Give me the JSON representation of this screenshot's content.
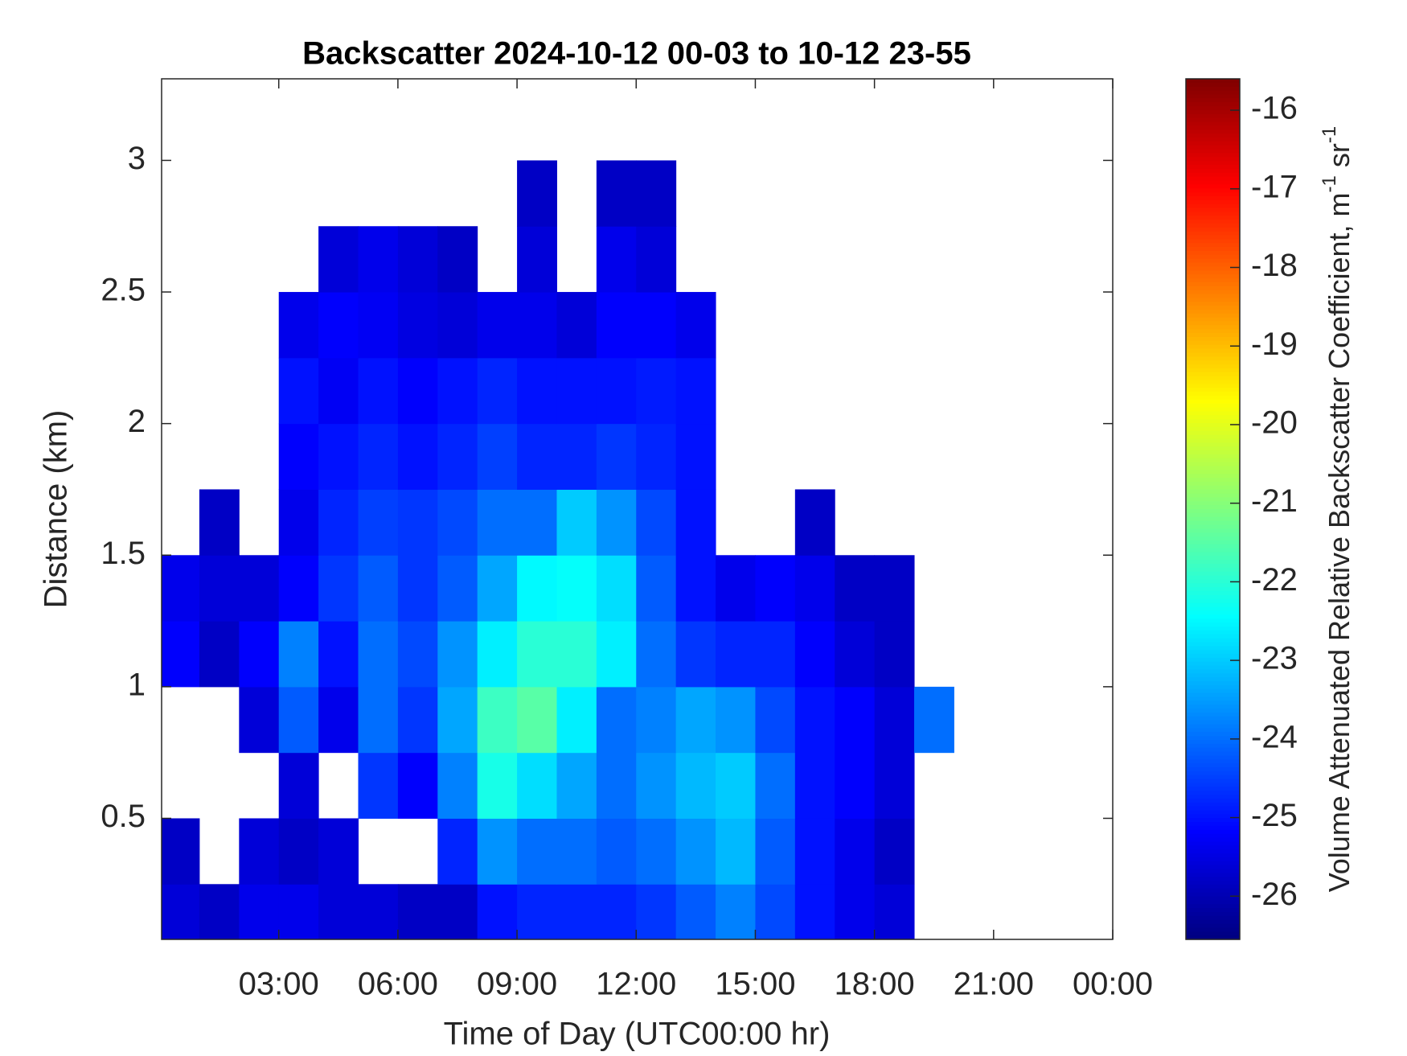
{
  "chart_data": {
    "type": "heatmap",
    "title": "Backscatter 2024-10-12 00-03 to 10-12 23-55",
    "x_label": "Time of Day (UTC00:00 hr)",
    "y_label": "Distance (km)",
    "colormap": "jet",
    "x": [
      0,
      1,
      2,
      3,
      4,
      5,
      6,
      7,
      8,
      9,
      10,
      11,
      12,
      13,
      14,
      15,
      16,
      17,
      18,
      19,
      20,
      21,
      22,
      23,
      24
    ],
    "y": [
      0,
      0.25,
      0.5,
      0.75,
      1,
      1.25,
      1.5,
      1.75,
      2,
      2.25,
      2.5,
      2.75,
      3,
      3.25
    ],
    "values": [
      [
        -25.6,
        -25.8,
        -25.4,
        -25.4,
        -25.6,
        -25.6,
        -25.8,
        -25.8,
        -25.0,
        -24.8,
        -24.8,
        -24.8,
        -24.6,
        -24.2,
        -23.8,
        -24.4,
        -25.0,
        -25.4,
        -25.6,
        null,
        null,
        null,
        null,
        null
      ],
      [
        -25.8,
        null,
        -25.6,
        -25.8,
        -25.6,
        null,
        null,
        -24.8,
        -23.6,
        -24.0,
        -24.0,
        -24.2,
        -24.0,
        -23.6,
        -23.2,
        -24.2,
        -25.0,
        -25.4,
        -25.8,
        null,
        null,
        null,
        null,
        null
      ],
      [
        null,
        null,
        null,
        -25.6,
        null,
        -24.6,
        -25.2,
        -23.8,
        -22.2,
        -22.8,
        -23.4,
        -24.0,
        -23.6,
        -23.2,
        -23.0,
        -24.0,
        -25.0,
        -25.2,
        -25.6,
        null,
        null,
        null,
        null,
        null
      ],
      [
        null,
        null,
        -25.6,
        -24.2,
        -25.4,
        -24.0,
        -24.6,
        -23.4,
        -21.8,
        -21.5,
        -22.6,
        -24.0,
        -23.8,
        -23.4,
        -23.6,
        -24.4,
        -25.0,
        -25.2,
        -25.6,
        -24.0,
        null,
        null,
        null,
        null
      ],
      [
        -25.2,
        -25.8,
        -25.2,
        -23.8,
        -25.0,
        -24.0,
        -24.4,
        -23.6,
        -22.6,
        -22.0,
        -22.0,
        -22.6,
        -24.0,
        -24.6,
        -24.8,
        -24.8,
        -25.2,
        -25.6,
        -25.8,
        null,
        null,
        null,
        null,
        null
      ],
      [
        -25.4,
        -25.6,
        -25.6,
        -25.2,
        -24.6,
        -24.2,
        -24.6,
        -24.2,
        -23.4,
        -22.5,
        -22.4,
        -22.8,
        -24.2,
        -25.0,
        -25.4,
        -25.2,
        -25.4,
        -25.8,
        -25.8,
        null,
        null,
        null,
        null,
        null
      ],
      [
        null,
        -25.8,
        null,
        -25.4,
        -24.8,
        -24.5,
        -24.6,
        -24.4,
        -24.0,
        -24.0,
        -23.0,
        -23.6,
        -24.4,
        -25.0,
        null,
        null,
        -25.8,
        null,
        null,
        null,
        null,
        null,
        null,
        null
      ],
      [
        null,
        null,
        null,
        -25.2,
        -25.0,
        -24.8,
        -25.0,
        -24.8,
        -24.5,
        -24.8,
        -24.8,
        -24.6,
        -24.8,
        -25.0,
        null,
        null,
        null,
        null,
        null,
        null,
        null,
        null,
        null,
        null
      ],
      [
        null,
        null,
        null,
        -25.0,
        -25.3,
        -25.0,
        -25.2,
        -25.0,
        -24.8,
        -25.0,
        -25.0,
        -25.0,
        -24.9,
        -25.0,
        null,
        null,
        null,
        null,
        null,
        null,
        null,
        null,
        null,
        null
      ],
      [
        null,
        null,
        null,
        -25.4,
        -25.2,
        -25.3,
        -25.5,
        -25.6,
        -25.4,
        -25.4,
        -25.6,
        -25.2,
        -25.2,
        -25.4,
        null,
        null,
        null,
        null,
        null,
        null,
        null,
        null,
        null,
        null
      ],
      [
        null,
        null,
        null,
        null,
        -25.6,
        -25.4,
        -25.6,
        -25.8,
        null,
        -25.6,
        null,
        -25.4,
        -25.6,
        null,
        null,
        null,
        null,
        null,
        null,
        null,
        null,
        null,
        null,
        null
      ],
      [
        null,
        null,
        null,
        null,
        null,
        null,
        null,
        null,
        null,
        -25.8,
        null,
        -25.8,
        -25.8,
        null,
        null,
        null,
        null,
        null,
        null,
        null,
        null,
        null,
        null,
        null
      ],
      [
        null,
        null,
        null,
        null,
        null,
        null,
        null,
        null,
        null,
        null,
        null,
        null,
        null,
        null,
        null,
        null,
        null,
        null,
        null,
        null,
        null,
        null,
        null,
        null
      ]
    ],
    "xlim": [
      0.05,
      24
    ],
    "ylim": [
      0.04,
      3.31
    ],
    "xticks": [
      {
        "value": 3,
        "label": "03:00"
      },
      {
        "value": 6,
        "label": "06:00"
      },
      {
        "value": 9,
        "label": "09:00"
      },
      {
        "value": 12,
        "label": "12:00"
      },
      {
        "value": 15,
        "label": "15:00"
      },
      {
        "value": 18,
        "label": "18:00"
      },
      {
        "value": 21,
        "label": "21:00"
      },
      {
        "value": 24,
        "label": "00:00"
      }
    ],
    "yticks": [
      0.5,
      1,
      1.5,
      2,
      2.5,
      3
    ],
    "clim": [
      -26.55,
      -15.6
    ],
    "cticks": [
      -26,
      -25,
      -24,
      -23,
      -22,
      -21,
      -20,
      -19,
      -18,
      -17,
      -16
    ],
    "colorbar_label": [
      "Volume Attenuated Relative Backscatter Coefficient, m",
      "-1",
      " sr",
      "-1"
    ]
  }
}
